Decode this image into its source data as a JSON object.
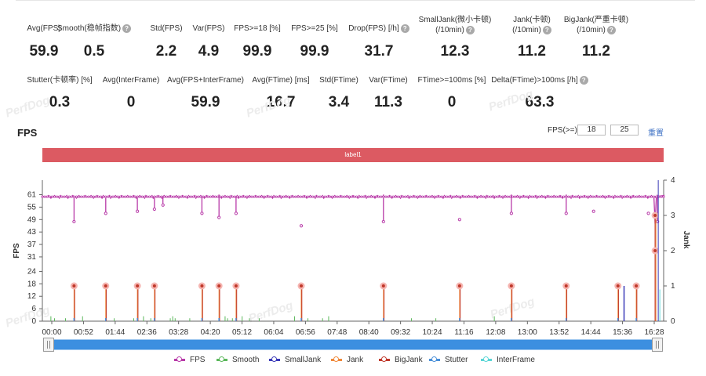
{
  "stats_row1": [
    {
      "label": "Avg(FPS)",
      "value": "59.9",
      "help": false
    },
    {
      "label": "Smooth(稳帧指数)",
      "value": "0.5",
      "help": true
    },
    {
      "label": "Std(FPS)",
      "value": "2.2",
      "help": false
    },
    {
      "label": "Var(FPS)",
      "value": "4.9",
      "help": false
    },
    {
      "label": "FPS>=18 [%]",
      "value": "99.9",
      "help": false
    },
    {
      "label": "FPS>=25 [%]",
      "value": "99.9",
      "help": false
    },
    {
      "label": "Drop(FPS) [/h]",
      "value": "31.7",
      "help": true
    },
    {
      "label": "SmallJank(微小卡顿)",
      "label2": "(/10min)",
      "value": "12.3",
      "help": true
    },
    {
      "label": "Jank(卡顿)",
      "label2": "(/10min)",
      "value": "11.2",
      "help": true
    },
    {
      "label": "BigJank(严重卡顿)",
      "label2": "(/10min)",
      "value": "11.2",
      "help": true
    }
  ],
  "stats_row2": [
    {
      "label": "Stutter(卡顿率) [%]",
      "value": "0.3",
      "help": false
    },
    {
      "label": "Avg(InterFrame)",
      "value": "0",
      "help": false
    },
    {
      "label": "Avg(FPS+InterFrame)",
      "value": "59.9",
      "help": false
    },
    {
      "label": "Avg(FTime) [ms]",
      "value": "16.7",
      "help": false
    },
    {
      "label": "Std(FTime)",
      "value": "3.4",
      "help": false
    },
    {
      "label": "Var(FTime)",
      "value": "11.3",
      "help": false
    },
    {
      "label": "FTime>=100ms [%]",
      "value": "0",
      "help": false
    },
    {
      "label": "Delta(FTime)>100ms [/h]",
      "value": "63.3",
      "help": true
    }
  ],
  "watermark": "PerfDog",
  "chart_title": "FPS",
  "threshold": {
    "label": "FPS(>=)",
    "value1": "18",
    "value2": "25",
    "reset": "重置"
  },
  "label_bar": "label1",
  "help_glyph": "?",
  "chart_data": {
    "type": "line",
    "title": "FPS",
    "ylabel_left": "FPS",
    "ylabel_right": "Jank",
    "y_ticks": [
      "0",
      "6",
      "12",
      "18",
      "24",
      "31",
      "37",
      "43",
      "49",
      "55",
      "61"
    ],
    "ylim_left": [
      0,
      68
    ],
    "y2_ticks": [
      "0",
      "1",
      "2",
      "3",
      "4"
    ],
    "ylim_right": [
      0,
      4
    ],
    "x_ticks": [
      "00:00",
      "00:52",
      "01:44",
      "02:36",
      "03:28",
      "04:20",
      "05:12",
      "06:04",
      "06:56",
      "07:48",
      "08:40",
      "09:32",
      "10:24",
      "11:16",
      "12:08",
      "13:00",
      "13:52",
      "14:44",
      "15:36",
      "16:28"
    ],
    "x_range_seconds": [
      0,
      1020
    ],
    "fps_baseline": 60,
    "fps_dips": [
      {
        "t": 52,
        "fps": 48
      },
      {
        "t": 104,
        "fps": 52
      },
      {
        "t": 156,
        "fps": 53
      },
      {
        "t": 184,
        "fps": 54
      },
      {
        "t": 198,
        "fps": 56
      },
      {
        "t": 262,
        "fps": 52
      },
      {
        "t": 290,
        "fps": 50
      },
      {
        "t": 318,
        "fps": 52
      },
      {
        "t": 425,
        "fps": 46
      },
      {
        "t": 560,
        "fps": 48
      },
      {
        "t": 685,
        "fps": 49
      },
      {
        "t": 770,
        "fps": 52
      },
      {
        "t": 860,
        "fps": 52
      },
      {
        "t": 905,
        "fps": 53
      },
      {
        "t": 995,
        "fps": 52
      },
      {
        "t": 1010,
        "fps": 48
      }
    ],
    "bigjank_times": [
      52,
      104,
      156,
      184,
      262,
      290,
      318,
      425,
      560,
      685,
      770,
      860,
      945,
      975
    ],
    "bigjank_final": {
      "t": 1006,
      "values": [
        3,
        2
      ]
    },
    "smalljank_spikes": [
      {
        "t": 955,
        "value": 1
      }
    ],
    "series": [
      {
        "name": "FPS",
        "color": "#b83aa8"
      },
      {
        "name": "Smooth",
        "color": "#5cb85c"
      },
      {
        "name": "SmallJank",
        "color": "#3a3ab8"
      },
      {
        "name": "Jank",
        "color": "#f0893a"
      },
      {
        "name": "BigJank",
        "color": "#c0392b"
      },
      {
        "name": "Stutter",
        "color": "#4a90d9"
      },
      {
        "name": "InterFrame",
        "color": "#5bd6d6"
      }
    ]
  }
}
